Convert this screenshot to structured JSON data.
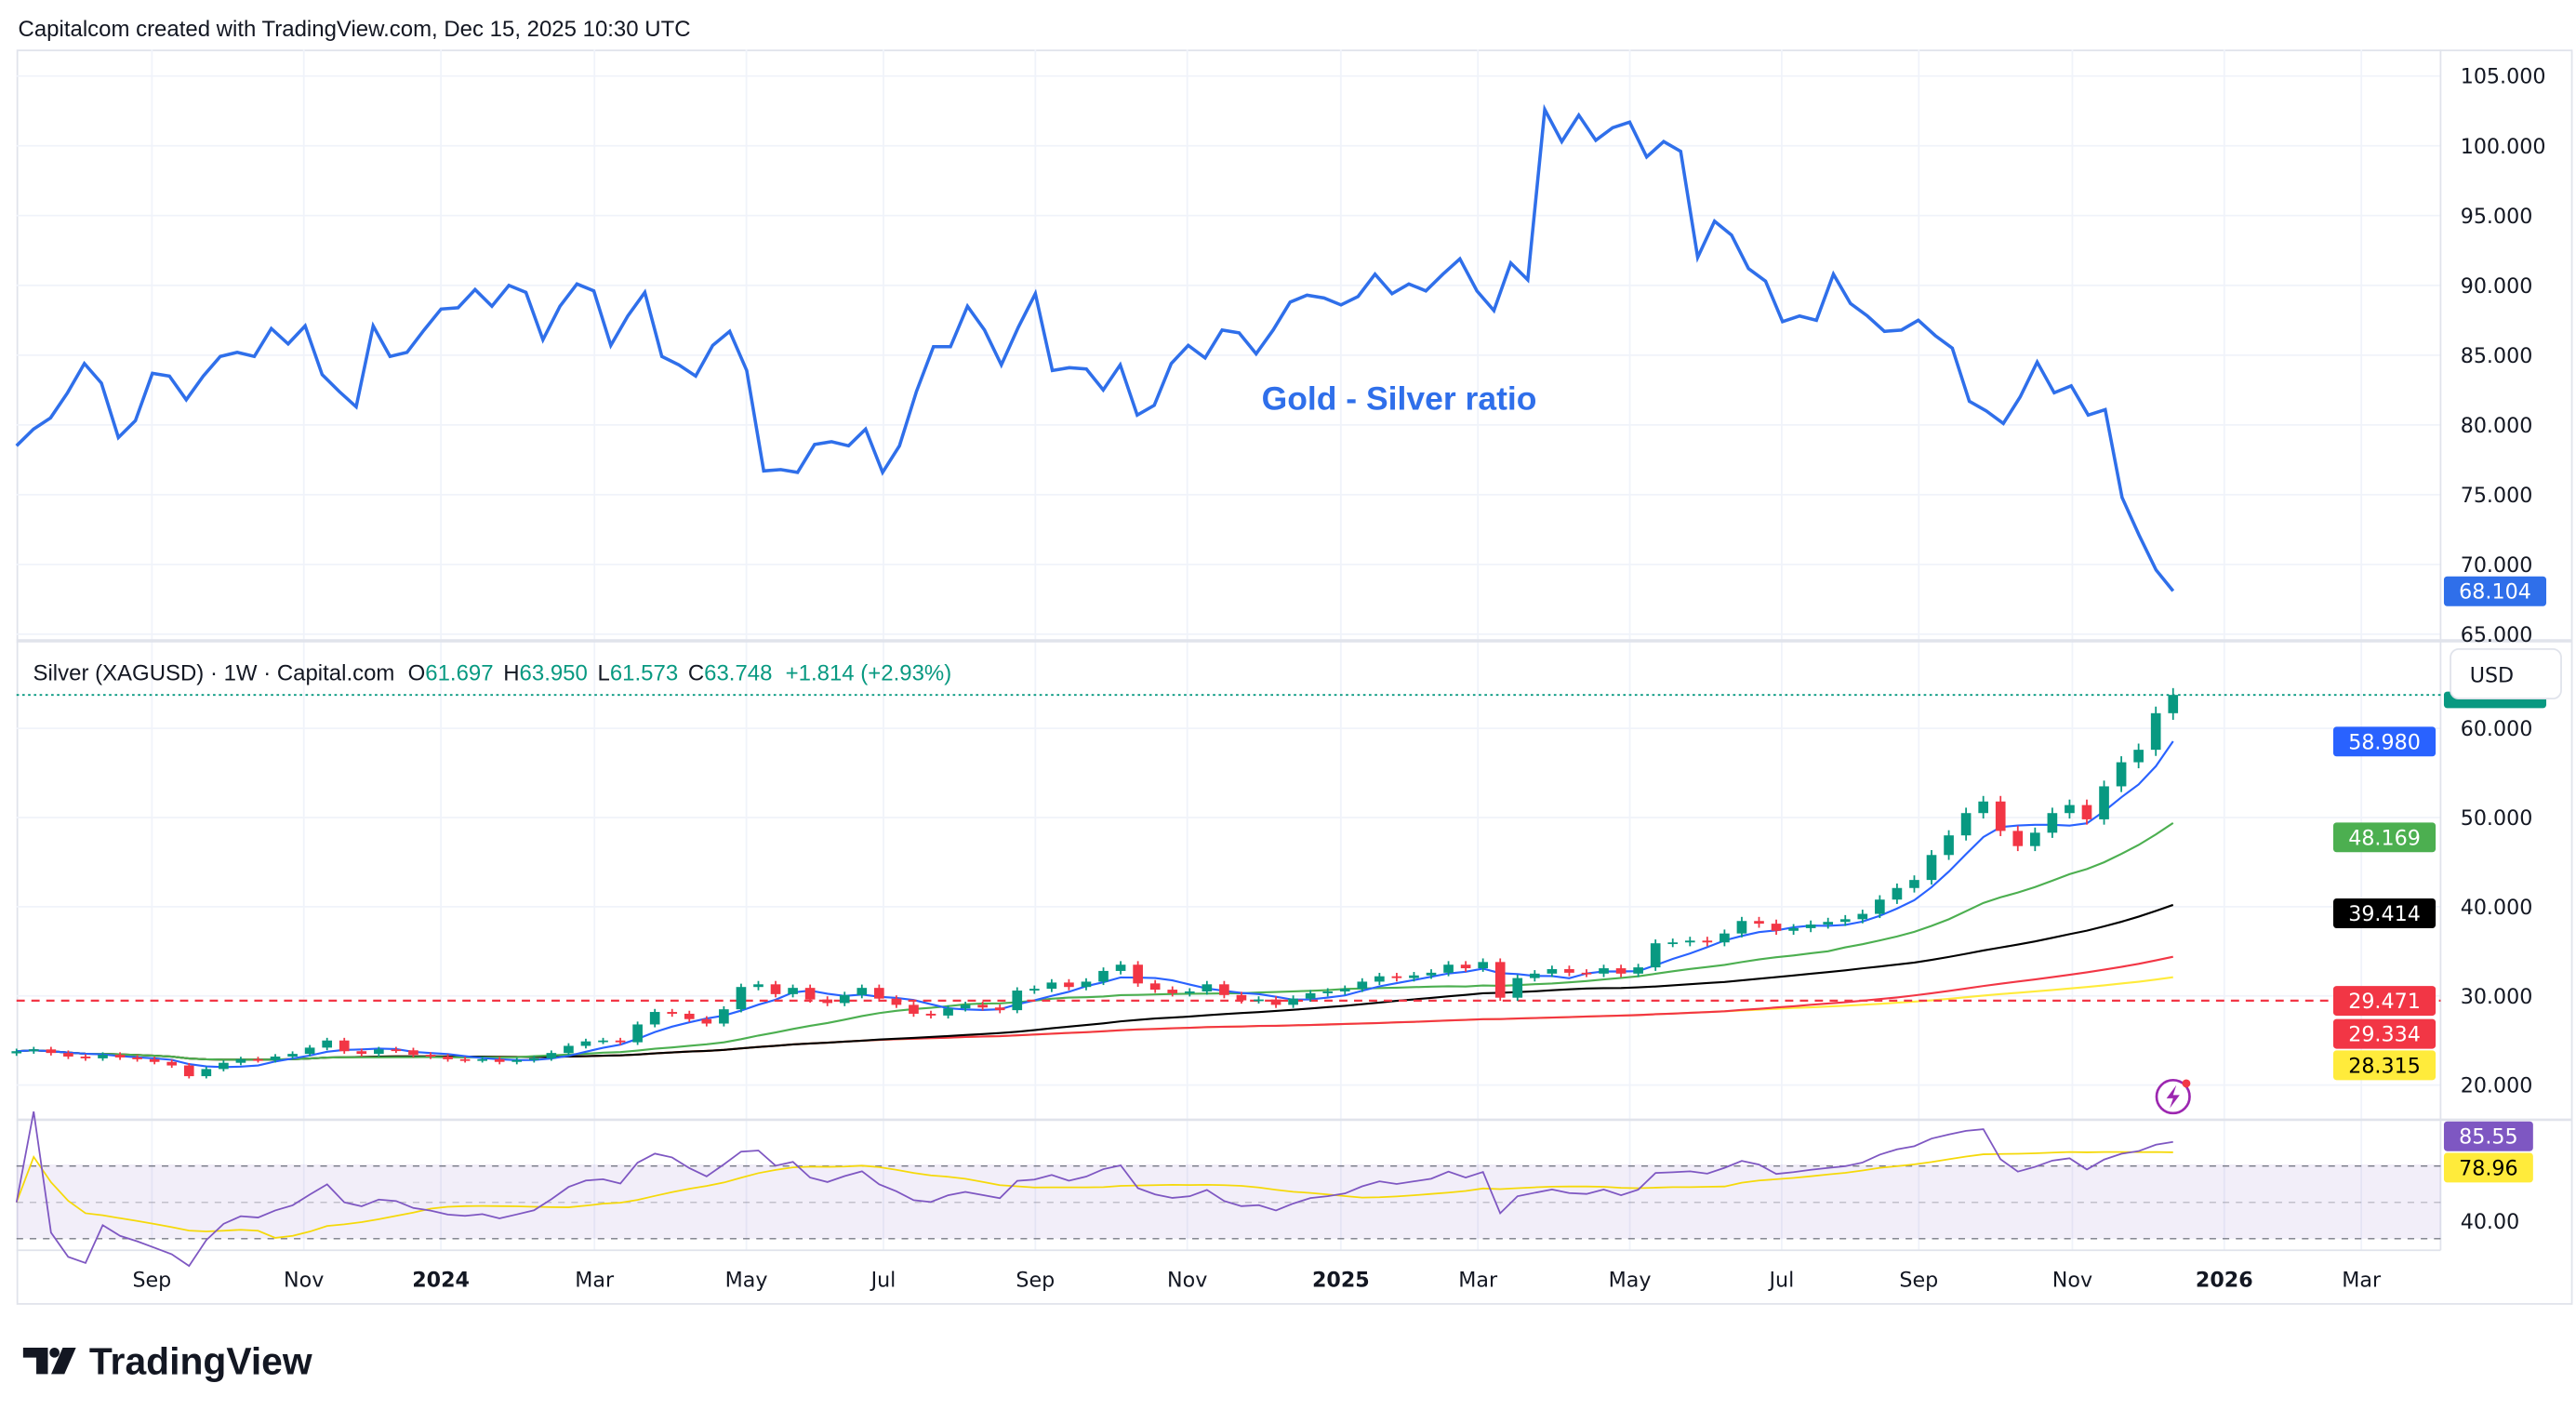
{
  "header": {
    "credit": "Capitalcom created with TradingView.com, Dec 15, 2025 10:30 UTC"
  },
  "logo": {
    "text": "TradingView"
  },
  "colors": {
    "ratio_line": "#2f6fea",
    "up": "#089981",
    "down": "#f23645",
    "ma_fast": "#2962ff",
    "ma_green": "#4caf50",
    "ma_black": "#000000",
    "ma_red": "#f23645",
    "ma_yellow": "#ffeb3b",
    "rsi": "#7e57c2",
    "grid": "#f0f3fa"
  },
  "icons": {
    "alert": "lightning-icon"
  },
  "chart_data": [
    {
      "type": "line",
      "annotation": "Gold - Silver ratio",
      "ylim": [
        65,
        105
      ],
      "y_ticks": [
        "65.000",
        "70.000",
        "75.000",
        "80.000",
        "85.000",
        "90.000",
        "95.000",
        "100.000",
        "105.000"
      ],
      "last_value_label": "68.104",
      "values": [
        78.5,
        79.7,
        80.5,
        82.3,
        84.4,
        83,
        79.1,
        80.3,
        83.7,
        83.5,
        81.8,
        83.5,
        84.9,
        85.2,
        84.9,
        86.9,
        85.8,
        87.1,
        83.6,
        82.4,
        81.3,
        87.1,
        84.9,
        85.2,
        86.8,
        88.3,
        88.4,
        89.7,
        88.5,
        90,
        89.5,
        86.1,
        88.5,
        90.1,
        89.6,
        85.7,
        87.8,
        89.5,
        84.9,
        84.3,
        83.5,
        85.7,
        86.7,
        83.9,
        76.7,
        76.8,
        76.6,
        78.6,
        78.8,
        78.5,
        79.7,
        76.6,
        78.5,
        82.4,
        85.6,
        85.6,
        88.5,
        86.8,
        84.3,
        87,
        89.4,
        83.9,
        84.1,
        84,
        82.5,
        84.3,
        80.7,
        81.4,
        84.4,
        85.7,
        84.8,
        86.8,
        86.6,
        85.1,
        86.8,
        88.8,
        89.3,
        89.1,
        88.6,
        89.2,
        90.8,
        89.4,
        90.1,
        89.6,
        90.8,
        91.9,
        89.6,
        88.2,
        91.6,
        90.4,
        102.6,
        100.3,
        102.2,
        100.4,
        101.3,
        101.7,
        99.2,
        100.3,
        99.6,
        92,
        94.6,
        93.6,
        91.2,
        90.3,
        87.4,
        87.8,
        87.5,
        90.8,
        88.7,
        87.8,
        86.7,
        86.8,
        87.5,
        86.4,
        85.5,
        81.7,
        81,
        80.1,
        82,
        84.5,
        82.3,
        82.8,
        80.7,
        81.1,
        74.8,
        72.1,
        69.6,
        68.1
      ]
    },
    {
      "type": "candlestick",
      "legend": {
        "symbol": "Silver (XAGUSD) · 1W · Capital.com",
        "o_label": "O",
        "o": "61.697",
        "h_label": "H",
        "h": "63.950",
        "l_label": "L",
        "l": "61.573",
        "c_label": "C",
        "c": "63.748",
        "change": "+1.814 (+2.93%)"
      },
      "currency": "USD",
      "ylim": [
        15,
        67
      ],
      "y_ticks": [
        "20.000",
        "30.000",
        "40.000",
        "50.000",
        "60.000"
      ],
      "closes": [
        23.8,
        24.0,
        23.6,
        23.2,
        23.0,
        23.4,
        23.1,
        22.9,
        22.6,
        22.2,
        21.0,
        21.8,
        22.5,
        22.9,
        22.8,
        23.2,
        23.5,
        24.2,
        25.0,
        23.8,
        23.5,
        24.0,
        23.9,
        23.4,
        23.2,
        22.9,
        22.8,
        22.9,
        22.6,
        22.8,
        23.0,
        23.6,
        24.4,
        24.9,
        25.0,
        24.8,
        26.8,
        28.2,
        28.0,
        27.4,
        26.9,
        28.5,
        31.0,
        31.3,
        30.2,
        30.9,
        29.6,
        29.2,
        30.1,
        30.9,
        29.7,
        29.0,
        28.0,
        27.8,
        28.6,
        29.0,
        28.7,
        28.4,
        30.6,
        30.8,
        31.5,
        31.0,
        31.6,
        32.8,
        33.5,
        31.4,
        30.7,
        30.3,
        30.5,
        31.3,
        30.1,
        29.5,
        29.6,
        29.0,
        29.7,
        30.3,
        30.5,
        30.8,
        31.6,
        32.2,
        32.0,
        32.3,
        32.6,
        33.5,
        33.1,
        33.8,
        29.8,
        32.0,
        32.5,
        33.0,
        32.6,
        32.5,
        33.1,
        32.5,
        33.2,
        35.9,
        36.0,
        36.2,
        36.0,
        37.0,
        38.4,
        38.1,
        37.3,
        37.6,
        38.0,
        38.3,
        38.6,
        39.2,
        40.8,
        42.1,
        43.0,
        45.8,
        48.0,
        50.5,
        51.8,
        48.5,
        46.8,
        48.3,
        50.5,
        51.4,
        49.8,
        53.5,
        56.2,
        57.6,
        61.7,
        63.75
      ],
      "last_price": 63.748,
      "price_labels": [
        {
          "value": "58.980",
          "color": "#2962ff"
        },
        {
          "value": "48.169",
          "color": "#4caf50"
        },
        {
          "value": "39.414",
          "color": "#000000"
        },
        {
          "value": "29.471",
          "color": "#f23645"
        },
        {
          "value": "29.334",
          "color": "#f23645"
        },
        {
          "value": "28.315",
          "color": "#ffeb3b"
        }
      ],
      "horizontal_line": 29.471
    },
    {
      "type": "line",
      "indicator": "RSI",
      "y_ticks": [
        "40.00"
      ],
      "bands": [
        30,
        50,
        70
      ],
      "labels": [
        {
          "value": "85.55",
          "color": "#7e57c2"
        },
        {
          "value": "78.96",
          "color": "#ffeb3b"
        }
      ]
    }
  ],
  "x_axis": {
    "ticks": [
      {
        "label": "Sep",
        "bold": false
      },
      {
        "label": "Nov",
        "bold": false
      },
      {
        "label": "2024",
        "bold": true
      },
      {
        "label": "Mar",
        "bold": false
      },
      {
        "label": "May",
        "bold": false
      },
      {
        "label": "Jul",
        "bold": false
      },
      {
        "label": "Sep",
        "bold": false
      },
      {
        "label": "Nov",
        "bold": false
      },
      {
        "label": "2025",
        "bold": true
      },
      {
        "label": "Mar",
        "bold": false
      },
      {
        "label": "May",
        "bold": false
      },
      {
        "label": "Jul",
        "bold": false
      },
      {
        "label": "Sep",
        "bold": false
      },
      {
        "label": "Nov",
        "bold": false
      },
      {
        "label": "2026",
        "bold": true
      },
      {
        "label": "Mar",
        "bold": false
      }
    ]
  }
}
